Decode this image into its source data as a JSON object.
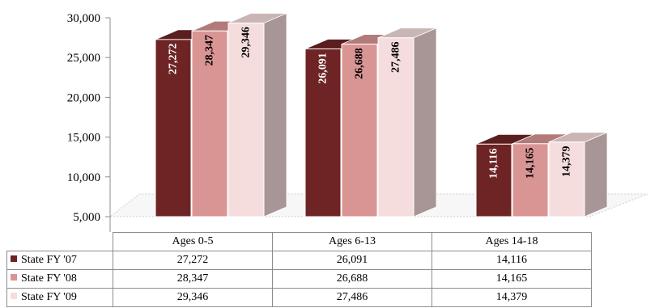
{
  "chart_data": {
    "type": "bar",
    "categories": [
      "Ages 0-5",
      "Ages 6-13",
      "Ages 14-18"
    ],
    "series": [
      {
        "name": "State FY '07",
        "values": [
          27272,
          26091,
          14116
        ],
        "value_labels": [
          "27,272",
          "26,091",
          "14,116"
        ],
        "color": "#6e2424",
        "label_color": "#ffffff"
      },
      {
        "name": "State FY '08",
        "values": [
          28347,
          26688,
          14165
        ],
        "value_labels": [
          "28,347",
          "26,688",
          "14,165"
        ],
        "color": "#d99594",
        "label_color": "#000000"
      },
      {
        "name": "State FY '09",
        "values": [
          29346,
          27486,
          14379
        ],
        "value_labels": [
          "29,346",
          "27,486",
          "14,379"
        ],
        "color": "#f6dddd",
        "label_color": "#000000"
      }
    ],
    "ylim": [
      5000,
      30000
    ],
    "yticks": [
      5000,
      10000,
      15000,
      20000,
      25000,
      30000
    ],
    "ytick_labels": [
      "5,000",
      "10,000",
      "15,000",
      "20,000",
      "25,000",
      "30,000"
    ],
    "style": "3d-clustered-column",
    "data_table": true,
    "grid": false
  }
}
